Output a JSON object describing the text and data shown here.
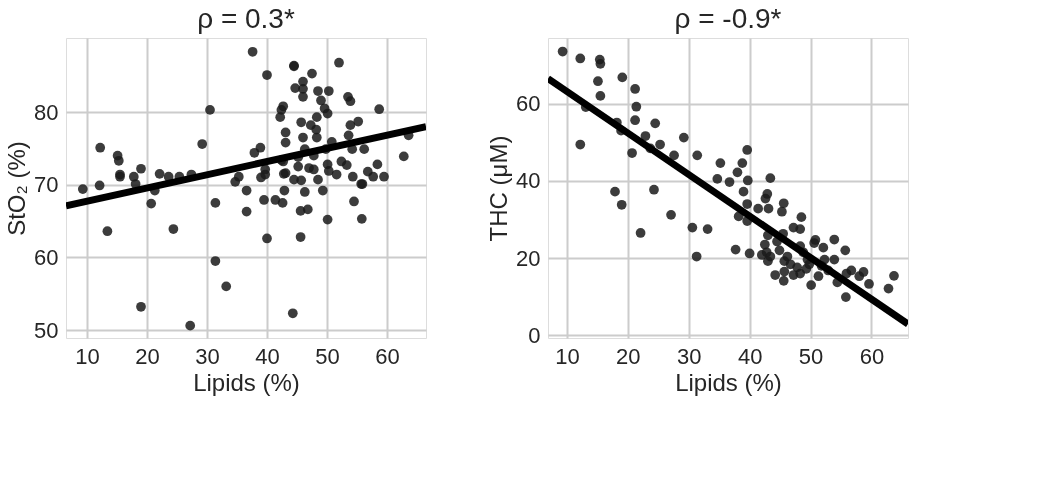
{
  "chart_data": [
    {
      "type": "scatter",
      "title": "ρ = 0.3*",
      "xlabel": "Lipids (%)",
      "ylabel": "StO₂ (%)",
      "xlim": [
        6.5,
        66.5
      ],
      "ylim": [
        48.9,
        90.2
      ],
      "xticks": [
        10,
        20,
        30,
        40,
        50,
        60
      ],
      "yticks": [
        50,
        60,
        70,
        80
      ],
      "grid": true,
      "series": [
        {
          "marker": "circle",
          "color": "#1a1a1a",
          "x": [
            37.6,
            40.0,
            44.5,
            44.5,
            52.0,
            47.5,
            46.0,
            44.7,
            46.0,
            46.0,
            48.5,
            50.3,
            49.0,
            53.5,
            53.9,
            49.6,
            50.1,
            42.7,
            42.4,
            42.2,
            58.7,
            30.5,
            48.3,
            45.7,
            47.3,
            53.9,
            55.2,
            48.2,
            43.1,
            46.0,
            48.3,
            43.1,
            53.6,
            29.2,
            12.2,
            15.1,
            15.3,
            38.9,
            37.9,
            46.3,
            50.8,
            54.2,
            56.2,
            63.6,
            62.8,
            15.5,
            15.5,
            19.0,
            17.8,
            18.1,
            12.1,
            9.3,
            21.3,
            22.1,
            23.6,
            25.4,
            27.4,
            20.7,
            13.4,
            24.4,
            19.0,
            27.2,
            31.4,
            31.4,
            33.2,
            34.7,
            35.3,
            36.6,
            36.6,
            39.5,
            39.7,
            39.7,
            40.0,
            41.4,
            42.6,
            42.9,
            42.8,
            42.7,
            43.1,
            44.5,
            45.7,
            45.2,
            46.3,
            45.6,
            46.8,
            45.6,
            44.3,
            47.0,
            47.8,
            48.5,
            49.3,
            50.1,
            50.3,
            51.6,
            50.1,
            52.4,
            53.3,
            54.3,
            55.9,
            55.7,
            56.8,
            58.4,
            57.7,
            59.5,
            54.5,
            55.8,
            47.8,
            49.8,
            45.2,
            42.4,
            39.0
          ],
          "values": [
            88.3,
            85.1,
            86.4,
            86.3,
            86.8,
            85.3,
            84.2,
            83.3,
            83.2,
            82.1,
            82.9,
            82.9,
            81.6,
            82.1,
            81.5,
            80.5,
            79.8,
            80.8,
            80.3,
            79.3,
            80.4,
            80.3,
            79.3,
            78.6,
            78.2,
            78.2,
            78.7,
            77.6,
            77.2,
            76.5,
            76.5,
            75.8,
            76.8,
            75.6,
            75.1,
            74.0,
            73.3,
            75.1,
            74.4,
            74.9,
            75.9,
            74.9,
            74.9,
            76.8,
            73.9,
            71.4,
            71.1,
            72.2,
            71.1,
            70.1,
            69.9,
            69.4,
            69.2,
            71.5,
            71.1,
            71.1,
            71.4,
            67.4,
            63.6,
            63.9,
            53.2,
            50.6,
            67.5,
            59.5,
            56.0,
            70.4,
            71.1,
            69.2,
            66.3,
            67.9,
            71.4,
            72.1,
            62.6,
            67.9,
            67.5,
            69.2,
            71.5,
            73.2,
            71.6,
            70.7,
            70.6,
            72.5,
            69.0,
            66.4,
            66.6,
            62.8,
            52.3,
            72.3,
            72.1,
            70.7,
            69.2,
            72.8,
            71.9,
            71.4,
            65.2,
            73.2,
            72.7,
            71.1,
            70.1,
            70.1,
            71.8,
            72.8,
            71.1,
            71.1,
            67.7,
            65.3,
            74.0,
            74.9,
            73.8,
            73.4,
            71.0
          ]
        },
        {
          "type": "line",
          "marker": "none",
          "color": "#000000",
          "x": [
            6.5,
            66.5
          ],
          "values": [
            67.1,
            78.0
          ]
        }
      ]
    },
    {
      "type": "scatter",
      "title": "ρ = -0.9*",
      "xlabel": "Lipids (%)",
      "ylabel": "THC (μM)",
      "xlim": [
        6.9,
        66.0
      ],
      "ylim": [
        -0.7,
        77.0
      ],
      "xticks": [
        10,
        20,
        30,
        40,
        50,
        60
      ],
      "yticks": [
        0,
        20,
        40,
        60
      ],
      "grid": true,
      "series": [
        {
          "marker": "circle",
          "color": "#1a1a1a",
          "x": [
            9.3,
            12.2,
            15.4,
            15.5,
            15.1,
            15.5,
            19.1,
            21.2,
            21.4,
            13.1,
            12.2,
            18.2,
            18.9,
            21.2,
            24.5,
            22.9,
            23.7,
            25.3,
            20.7,
            27.6,
            29.2,
            31.4,
            17.9,
            19.0,
            24.3,
            22.1,
            27.1,
            30.6,
            33.1,
            31.3,
            35.2,
            38.8,
            39.6,
            38.0,
            34.7,
            36.7,
            39.7,
            39.0,
            39.6,
            41.4,
            38.2,
            39.6,
            37.7,
            40.0,
            43.4,
            42.9,
            42.6,
            43.1,
            45.3,
            45.6,
            48.5,
            47.2,
            48.3,
            45.5,
            43.0,
            44.5,
            42.5,
            42.8,
            42.0,
            43.0,
            44.9,
            46.2,
            48.3,
            48.8,
            50.6,
            50.8,
            52.1,
            53.9,
            55.7,
            52.3,
            53.9,
            44.2,
            45.6,
            45.7,
            47.2,
            48.3,
            49.3,
            50.1,
            49.8,
            51.3,
            52.9,
            54.4,
            55.9,
            56.7,
            58.0,
            58.7,
            55.8,
            59.6,
            62.8,
            63.7,
            46.7,
            47.8,
            49.5,
            51.8,
            45.7,
            43.4
          ],
          "values": [
            73.5,
            71.7,
            71.4,
            70.3,
            65.8,
            62.0,
            66.8,
            63.8,
            59.2,
            59.1,
            49.4,
            55.1,
            53.0,
            55.7,
            54.9,
            51.6,
            48.4,
            49.4,
            47.2,
            46.6,
            51.2,
            46.6,
            37.2,
            33.8,
            37.7,
            26.5,
            31.2,
            27.9,
            27.5,
            20.4,
            44.6,
            44.6,
            48.0,
            42.2,
            40.5,
            39.7,
            40.1,
            37.2,
            34.0,
            32.8,
            30.8,
            29.6,
            22.2,
            21.2,
            40.7,
            36.6,
            35.4,
            32.8,
            32.0,
            34.2,
            30.6,
            27.9,
            27.5,
            26.3,
            25.9,
            24.3,
            23.5,
            21.5,
            20.8,
            19.2,
            22.0,
            20.4,
            23.1,
            21.5,
            23.9,
            24.7,
            22.7,
            24.8,
            22.0,
            19.6,
            19.6,
            15.6,
            14.1,
            16.5,
            15.6,
            16.0,
            17.2,
            13.0,
            18.4,
            15.3,
            16.8,
            13.7,
            16.0,
            16.8,
            15.3,
            16.4,
            9.9,
            13.3,
            12.1,
            15.4,
            18.4,
            17.6,
            19.6,
            18.0,
            19.2,
            20.4
          ]
        },
        {
          "type": "line",
          "marker": "none",
          "color": "#000000",
          "x": [
            6.9,
            66.0
          ],
          "values": [
            66.5,
            2.9
          ]
        }
      ]
    }
  ]
}
